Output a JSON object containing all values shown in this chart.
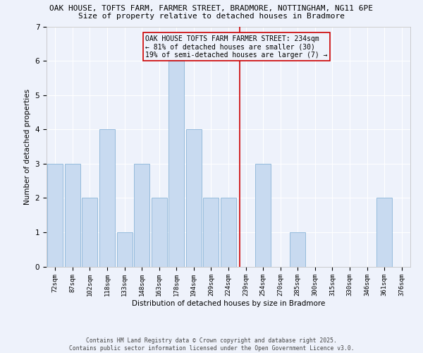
{
  "title_line1": "OAK HOUSE, TOFTS FARM, FARMER STREET, BRADMORE, NOTTINGHAM, NG11 6PE",
  "title_line2": "Size of property relative to detached houses in Bradmore",
  "xlabel": "Distribution of detached houses by size in Bradmore",
  "ylabel": "Number of detached properties",
  "categories": [
    "72sqm",
    "87sqm",
    "102sqm",
    "118sqm",
    "133sqm",
    "148sqm",
    "163sqm",
    "178sqm",
    "194sqm",
    "209sqm",
    "224sqm",
    "239sqm",
    "254sqm",
    "270sqm",
    "285sqm",
    "300sqm",
    "315sqm",
    "330sqm",
    "346sqm",
    "361sqm",
    "376sqm"
  ],
  "values": [
    3,
    3,
    2,
    4,
    1,
    3,
    2,
    6,
    4,
    2,
    2,
    0,
    3,
    0,
    1,
    0,
    0,
    0,
    0,
    2,
    0
  ],
  "bar_color": "#c8daf0",
  "bar_edgecolor": "#8ab4d8",
  "vline_color": "#cc0000",
  "vline_x": 10.65,
  "annotation_text": "OAK HOUSE TOFTS FARM FARMER STREET: 234sqm\n← 81% of detached houses are smaller (30)\n19% of semi-detached houses are larger (7) →",
  "annotation_box_edgecolor": "#cc0000",
  "ylim": [
    0,
    7
  ],
  "yticks": [
    0,
    1,
    2,
    3,
    4,
    5,
    6,
    7
  ],
  "footnote": "Contains HM Land Registry data © Crown copyright and database right 2025.\nContains public sector information licensed under the Open Government Licence v3.0.",
  "bg_color": "#eef2fb",
  "grid_color": "#ffffff",
  "title_fontsize": 8.0,
  "subtitle_fontsize": 8.0,
  "axis_label_fontsize": 7.5,
  "tick_fontsize": 6.5,
  "annotation_fontsize": 7.0,
  "footnote_fontsize": 5.8
}
